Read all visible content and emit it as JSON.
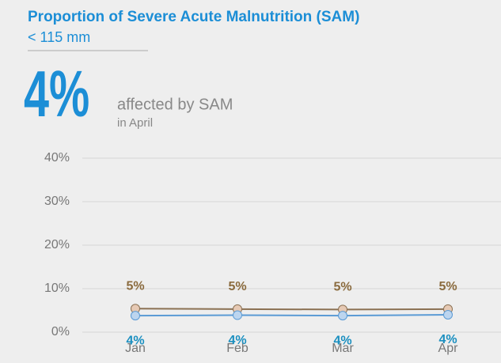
{
  "chart_data": {
    "type": "line",
    "title": "Proportion of Severe Acute Malnutrition (SAM)",
    "subtitle": "< 115 mm",
    "headline": "4%",
    "headline_text": "affected by SAM",
    "headline_sub": "in April",
    "categories": [
      "Jan",
      "Feb",
      "Mar",
      "Apr"
    ],
    "series": [
      {
        "color": "#8b7153",
        "marker_color": "#e6c9b4",
        "label_color": "#8a6a3d",
        "label_position": "above",
        "values": [
          5.4,
          5.3,
          5.2,
          5.3
        ],
        "value_labels": [
          "5%",
          "5%",
          "5%",
          "5%"
        ]
      },
      {
        "color": "#5b9bd5",
        "marker_color": "#bcd5ef",
        "label_color": "#1a8fc0",
        "label_position": "below",
        "values": [
          3.8,
          3.9,
          3.8,
          4.0
        ],
        "value_labels": [
          "4%",
          "4%",
          "4%",
          "4%"
        ]
      }
    ],
    "ylim": [
      0,
      40
    ],
    "yticks": [
      {
        "value": 0,
        "label": "0%"
      },
      {
        "value": 10,
        "label": "10%"
      },
      {
        "value": 20,
        "label": "20%"
      },
      {
        "value": 30,
        "label": "30%"
      },
      {
        "value": 40,
        "label": "40%"
      }
    ],
    "grid": true
  }
}
